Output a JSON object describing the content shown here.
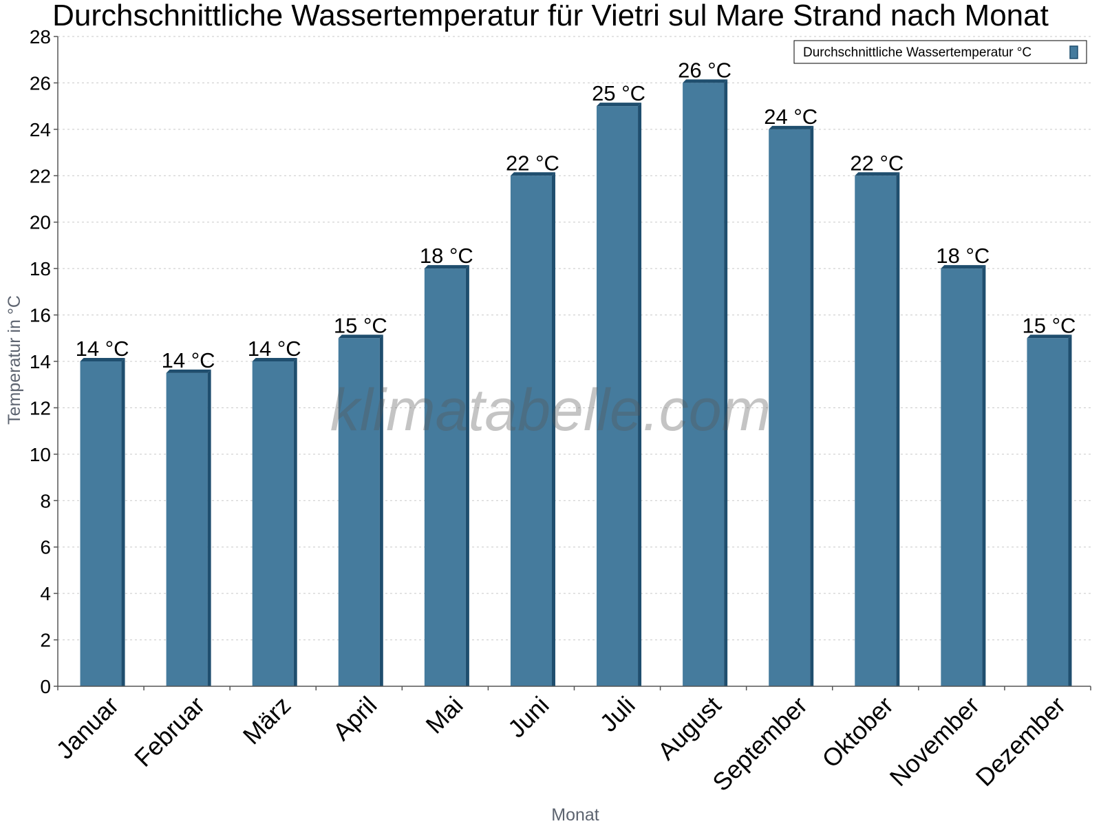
{
  "watermark": "klimatabelle.com",
  "chart_data": {
    "type": "bar",
    "title": "Durchschnittliche Wassertemperatur für Vietri sul Mare Strand nach Monat",
    "xlabel": "Monat",
    "ylabel": "Temperatur in °C",
    "ylim": [
      0,
      28
    ],
    "yticks": [
      "0",
      "2",
      "4",
      "6",
      "8",
      "10",
      "12",
      "14",
      "16",
      "18",
      "20",
      "22",
      "24",
      "26",
      "28"
    ],
    "grid": true,
    "legend_position": "top-right",
    "categories": [
      "Januar",
      "Februar",
      "März",
      "April",
      "Mai",
      "Juni",
      "Juli",
      "August",
      "September",
      "Oktober",
      "November",
      "Dezember"
    ],
    "series": [
      {
        "name": "Durchschnittliche Wassertemperatur °C",
        "color": "#457b9d",
        "values": [
          14,
          13.5,
          14,
          15,
          18,
          22,
          25,
          26,
          24,
          22,
          18,
          15
        ],
        "labels": [
          "14 °C",
          "14 °C",
          "14 °C",
          "15 °C",
          "18 °C",
          "22 °C",
          "25 °C",
          "26 °C",
          "24 °C",
          "22 °C",
          "18 °C",
          "15 °C"
        ]
      }
    ]
  }
}
